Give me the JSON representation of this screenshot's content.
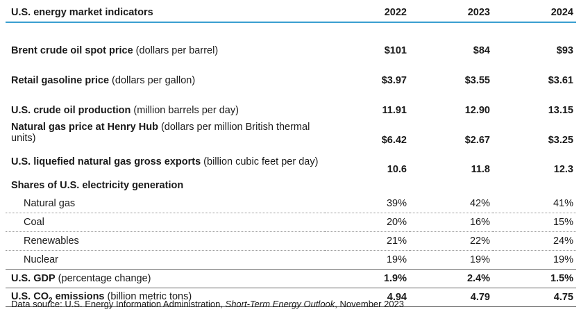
{
  "table": {
    "title": "U.S. energy market indicators",
    "years": [
      "2022",
      "2023",
      "2024"
    ],
    "rows": [
      {
        "label_bold": "Brent crude oil spot price",
        "label_rest": " (dollars per barrel)",
        "values": [
          "$101",
          "$84",
          "$93"
        ]
      },
      {
        "label_bold": "Retail gasoline price",
        "label_rest": " (dollars per gallon)",
        "values": [
          "$3.97",
          "$3.55",
          "$3.61"
        ]
      },
      {
        "label_bold": "U.S. crude oil production",
        "label_rest": " (million barrels per day)",
        "values": [
          "11.91",
          "12.90",
          "13.15"
        ]
      },
      {
        "label_bold": "Natural gas price at Henry Hub",
        "label_rest": " (dollars per million British thermal units)",
        "values": [
          "$6.42",
          "$2.67",
          "$3.25"
        ]
      },
      {
        "label_bold": "U.S. liquefied natural gas gross exports",
        "label_rest": " (billion cubic feet per day)",
        "values": [
          "10.6",
          "11.8",
          "12.3"
        ]
      }
    ],
    "shares_heading": "Shares of U.S. electricity generation",
    "shares": [
      {
        "label": "Natural gas",
        "values": [
          "39%",
          "42%",
          "41%"
        ]
      },
      {
        "label": "Coal",
        "values": [
          "20%",
          "16%",
          "15%"
        ]
      },
      {
        "label": "Renewables",
        "values": [
          "21%",
          "22%",
          "24%"
        ]
      },
      {
        "label": "Nuclear",
        "values": [
          "19%",
          "19%",
          "19%"
        ]
      }
    ],
    "gdp": {
      "label_bold": "U.S. GDP",
      "label_rest": " (percentage change)",
      "values": [
        "1.9%",
        "2.4%",
        "1.5%"
      ]
    },
    "co2": {
      "label_bold_a": "U.S. CO",
      "label_sub": "2",
      "label_bold_b": " emissions",
      "label_rest": " (billion metric tons)",
      "values": [
        "4.94",
        "4.79",
        "4.75"
      ]
    }
  },
  "source": {
    "prefix": "Data source: U.S. Energy Information Administration, ",
    "italic": "Short-Term Energy Outlook",
    "suffix": ", November 2023"
  }
}
